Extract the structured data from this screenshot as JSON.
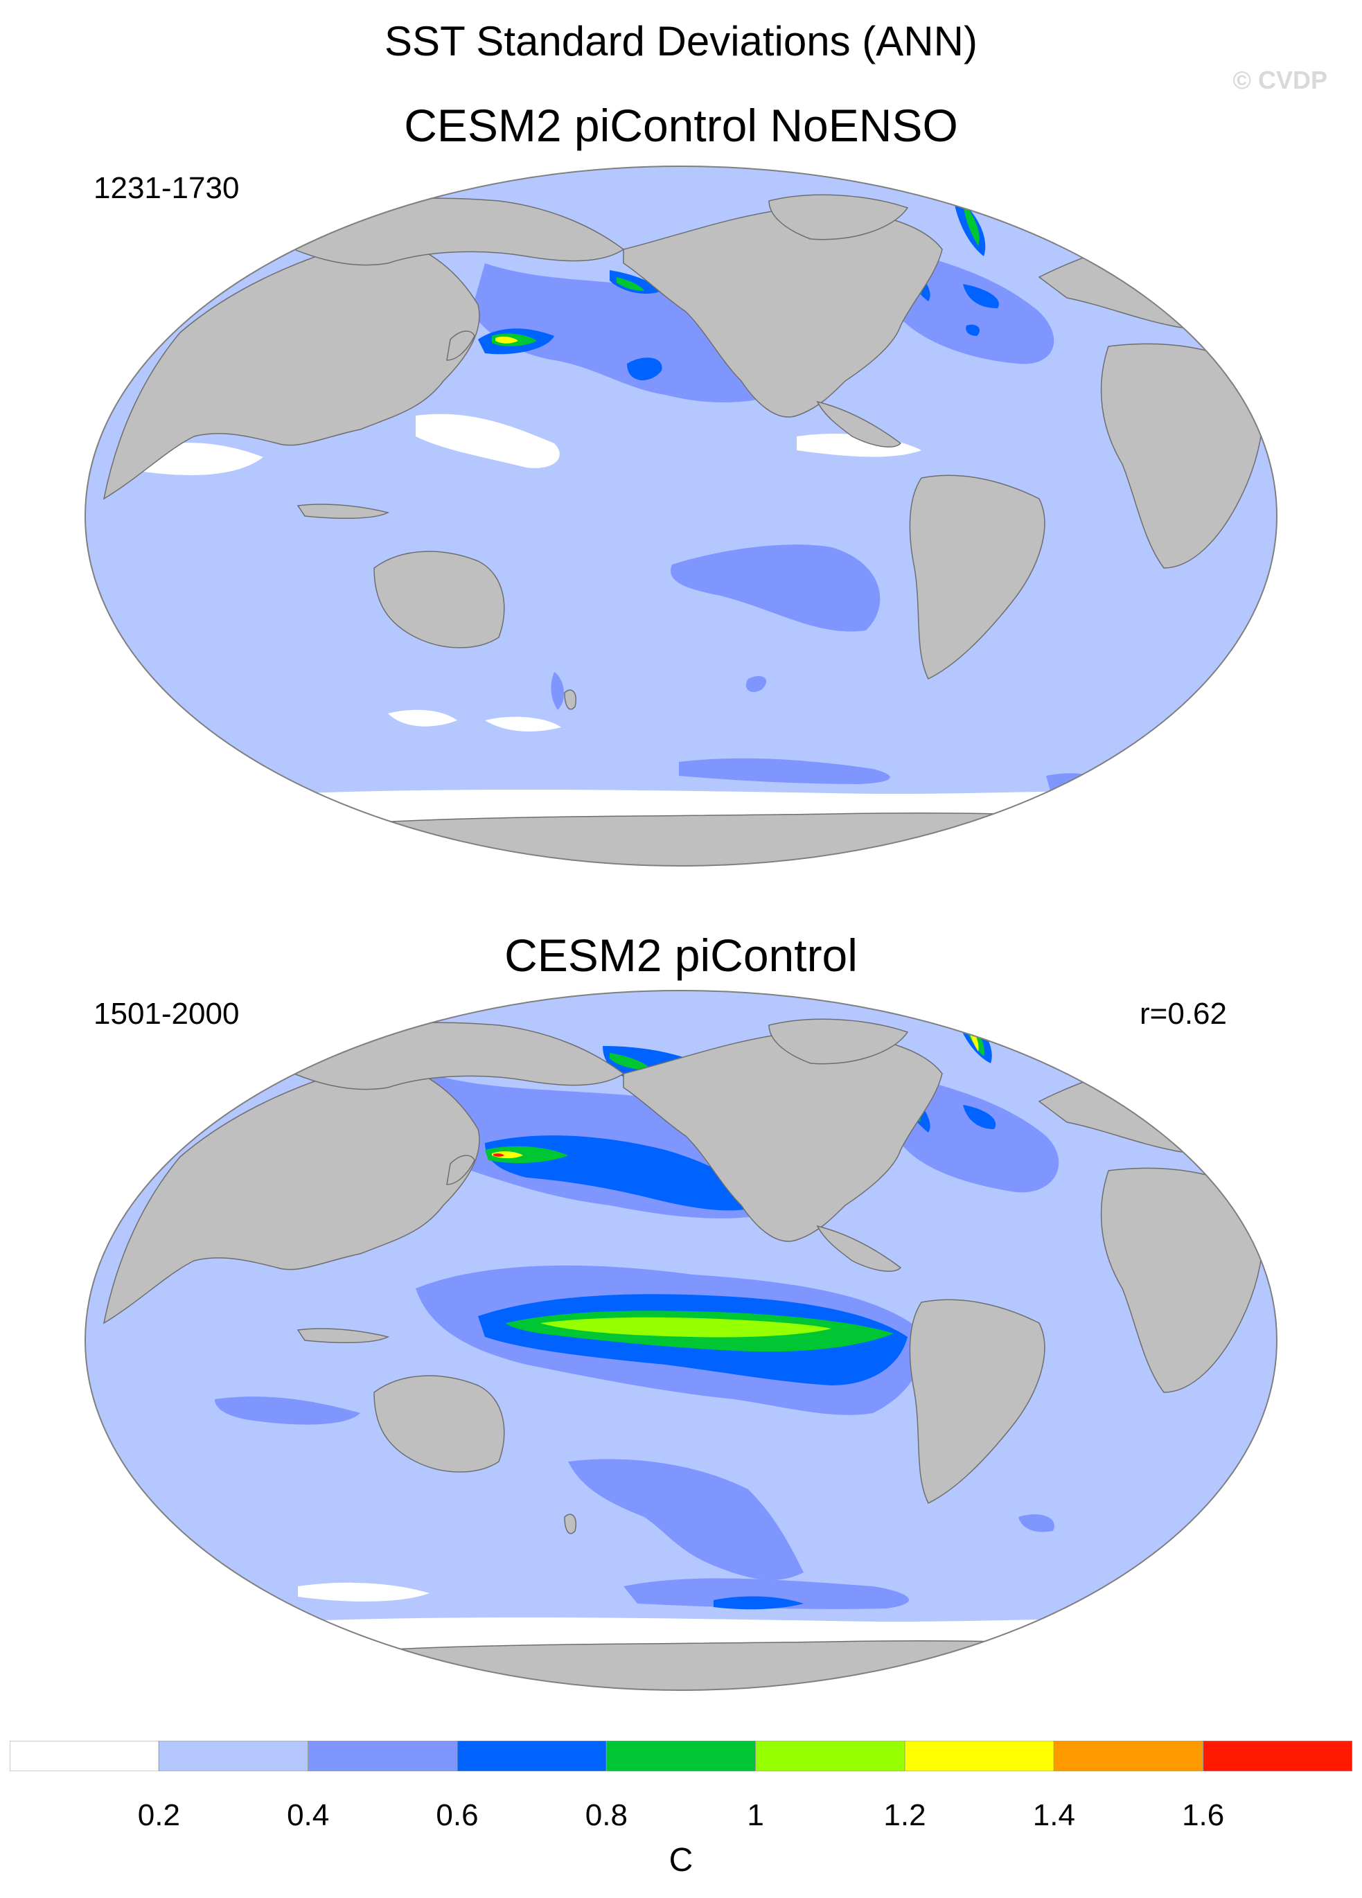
{
  "figure": {
    "main_title": "SST Standard Deviations (ANN)",
    "watermark": "© CVDP"
  },
  "panels": [
    {
      "title": "CESM2 piControl NoENSO",
      "period": "1231-1730",
      "correlation": ""
    },
    {
      "title": "CESM2 piControl",
      "period": "1501-2000",
      "correlation": "r=0.62"
    }
  ],
  "colorbar": {
    "units": "C",
    "labels": [
      "0.2",
      "0.4",
      "0.6",
      "0.8",
      "1",
      "1.2",
      "1.4",
      "1.6"
    ],
    "levels": [
      0.2,
      0.4,
      0.6,
      0.8,
      1.0,
      1.2,
      1.4,
      1.6
    ],
    "colors": [
      "#ffffff",
      "#b4c7ff",
      "#7f96ff",
      "#0063ff",
      "#00c633",
      "#96ff00",
      "#ffff00",
      "#ff9900",
      "#ff1900"
    ]
  },
  "map_colors": {
    "land": "#bfbfbf",
    "ocean_low": "#b4c7ff",
    "ocean_mid": "#7f96ff",
    "ocean_high": "#0063ff",
    "ocean_green": "#00c633",
    "ocean_lime": "#96ff00",
    "ocean_yellow": "#ffff00",
    "ocean_orange": "#ff9900",
    "ocean_red": "#ff1900",
    "white": "#ffffff"
  }
}
